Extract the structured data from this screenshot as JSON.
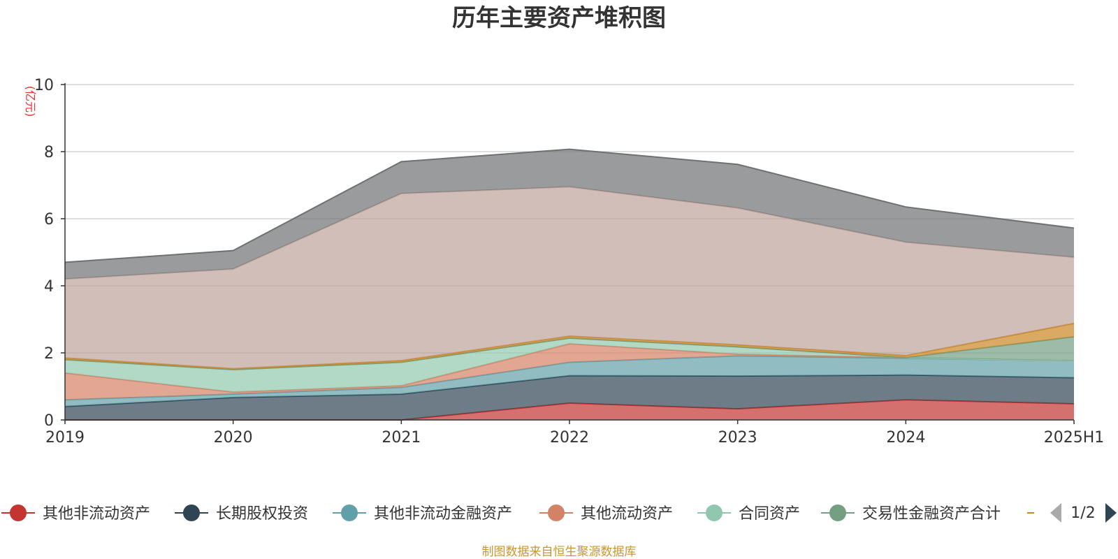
{
  "chart_data": {
    "type": "area",
    "stacked": true,
    "title": "历年主要资产堆积图",
    "unit_label": "(亿元)",
    "categories": [
      "2019",
      "2020",
      "2021",
      "2022",
      "2023",
      "2024",
      "2025H1"
    ],
    "ylim": [
      0,
      10
    ],
    "yticks": [
      0,
      2,
      4,
      6,
      8,
      10
    ],
    "grid": true,
    "series": [
      {
        "name": "其他非流动资产",
        "color": "#c23531",
        "values": [
          0.0,
          0.0,
          0.0,
          0.5,
          0.33,
          0.6,
          0.48
        ]
      },
      {
        "name": "长期股权投资",
        "color": "#2f4554",
        "values": [
          0.4,
          0.67,
          0.77,
          0.82,
          0.98,
          0.74,
          0.78
        ]
      },
      {
        "name": "其他非流动金融资产",
        "color": "#61a0a8",
        "values": [
          0.2,
          0.1,
          0.2,
          0.4,
          0.6,
          0.5,
          0.5
        ]
      },
      {
        "name": "其他流动资产",
        "color": "#d48265",
        "values": [
          0.8,
          0.06,
          0.05,
          0.55,
          0.05,
          0.02,
          0.0
        ]
      },
      {
        "name": "合同资产",
        "color": "#91c7ae",
        "values": [
          0.4,
          0.67,
          0.7,
          0.17,
          0.22,
          0.0,
          0.0
        ]
      },
      {
        "name": "交易性金融资产合计",
        "color": "#749f83",
        "values": [
          0.0,
          0.0,
          0.0,
          0.0,
          0.0,
          0.0,
          0.72
        ]
      },
      {
        "name": "",
        "color": "#ca8622",
        "values": [
          0.05,
          0.03,
          0.05,
          0.06,
          0.06,
          0.06,
          0.4
        ]
      },
      {
        "name": "",
        "color": "#bda29a",
        "values": [
          2.35,
          2.97,
          4.98,
          4.45,
          4.08,
          3.38,
          1.97
        ]
      },
      {
        "name": "",
        "color": "#6e7074",
        "values": [
          0.5,
          0.55,
          0.95,
          1.12,
          1.3,
          1.05,
          0.87
        ]
      }
    ],
    "legend": {
      "placement": "bottom",
      "page": "1/2",
      "visible_items": [
        "其他非流动资产",
        "长期股权投资",
        "其他非流动金融资产",
        "其他流动资产",
        "合同资产",
        "交易性金融资产合计"
      ]
    },
    "source": "制图数据来自恒生聚源数据库"
  }
}
